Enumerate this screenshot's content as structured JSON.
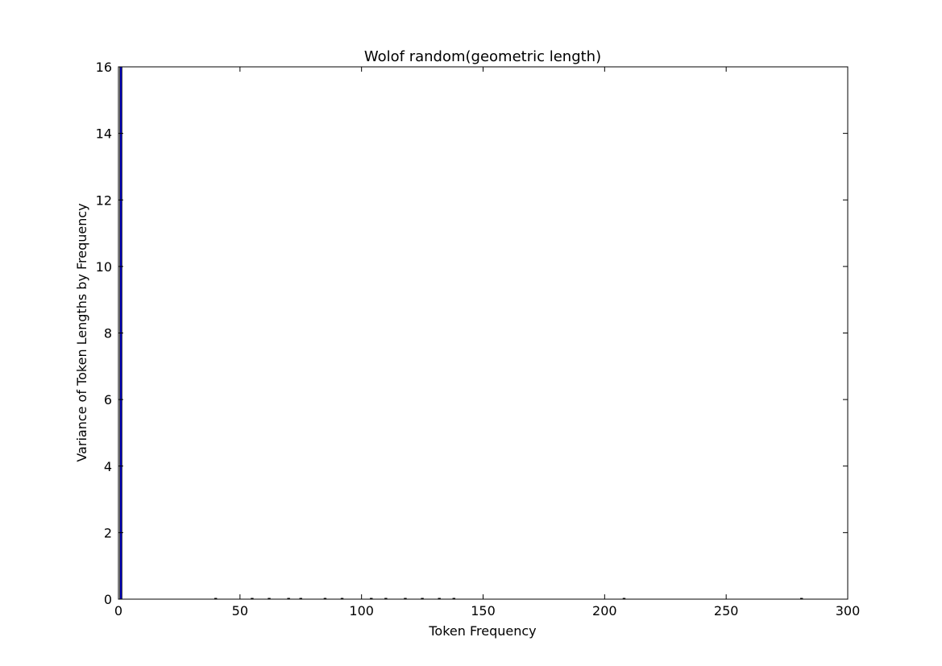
{
  "chart_data": {
    "type": "bar",
    "title": "Wolof random(geometric length)",
    "xlabel": "Token Frequency",
    "ylabel": "Variance of Token Lengths by Frequency",
    "xlim": [
      0,
      300
    ],
    "ylim": [
      0,
      16
    ],
    "xticks": [
      0,
      50,
      100,
      150,
      200,
      250,
      300
    ],
    "yticks": [
      0,
      2,
      4,
      6,
      8,
      10,
      12,
      14,
      16
    ],
    "grid": false,
    "bar_color": "#0000ff",
    "bar_edge_color": "#000000",
    "bars": [
      {
        "x": 1,
        "width": 0.8,
        "value": 16
      },
      {
        "x": 40,
        "width": 0.8,
        "value": 0.02
      },
      {
        "x": 55,
        "width": 0.8,
        "value": 0.02
      },
      {
        "x": 62,
        "width": 0.8,
        "value": 0.02
      },
      {
        "x": 70,
        "width": 0.8,
        "value": 0.02
      },
      {
        "x": 75,
        "width": 0.8,
        "value": 0.02
      },
      {
        "x": 85,
        "width": 0.8,
        "value": 0.02
      },
      {
        "x": 92,
        "width": 0.8,
        "value": 0.02
      },
      {
        "x": 104,
        "width": 0.8,
        "value": 0.02
      },
      {
        "x": 110,
        "width": 0.8,
        "value": 0.02
      },
      {
        "x": 118,
        "width": 0.8,
        "value": 0.02
      },
      {
        "x": 125,
        "width": 0.8,
        "value": 0.02
      },
      {
        "x": 132,
        "width": 0.8,
        "value": 0.02
      },
      {
        "x": 138,
        "width": 0.8,
        "value": 0.02
      },
      {
        "x": 208,
        "width": 0.8,
        "value": 0.02
      },
      {
        "x": 281,
        "width": 0.8,
        "value": 0.02
      }
    ]
  }
}
